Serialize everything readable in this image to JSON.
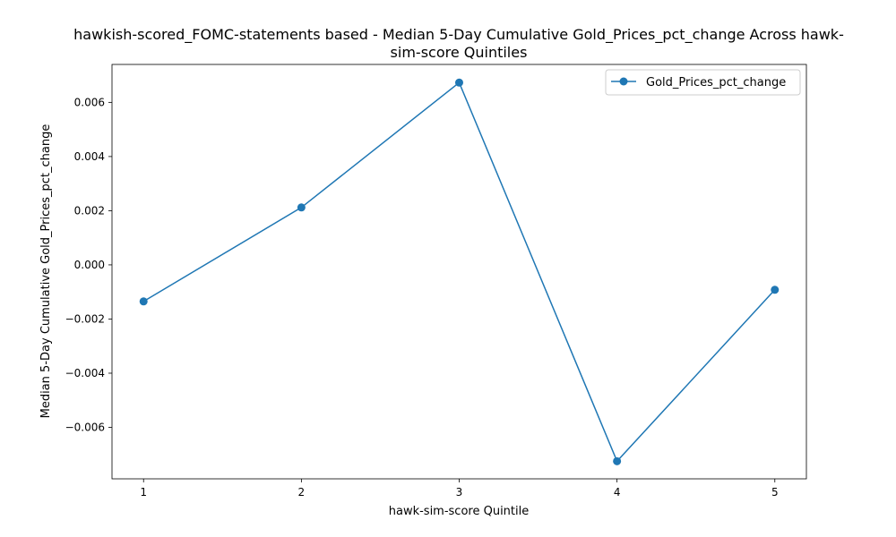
{
  "chart_data": {
    "type": "line",
    "title_lines": [
      "hawkish-scored_FOMC-statements based - Median 5-Day Cumulative Gold_Prices_pct_change Across hawk-",
      "sim-score Quintiles"
    ],
    "xlabel": "hawk-sim-score Quintile",
    "ylabel": "Median 5-Day Cumulative Gold_Prices_pct_change",
    "x": [
      1,
      2,
      3,
      4,
      5
    ],
    "x_tick_labels": [
      "1",
      "2",
      "3",
      "4",
      "5"
    ],
    "y_ticks": [
      -0.006,
      -0.004,
      -0.002,
      0.0,
      0.002,
      0.004,
      0.006
    ],
    "y_tick_labels": [
      "−0.006",
      "−0.004",
      "−0.002",
      "0.000",
      "0.002",
      "0.004",
      "0.006"
    ],
    "xlim": [
      0.8,
      5.2
    ],
    "ylim": [
      -0.0079,
      0.0074
    ],
    "series": [
      {
        "name": "Gold_Prices_pct_change",
        "color": "#1f77b4",
        "marker": "circle",
        "values": [
          -0.00135,
          0.00212,
          0.00673,
          -0.00725,
          -0.00092
        ]
      }
    ],
    "legend_position": "top-right",
    "grid": false
  }
}
